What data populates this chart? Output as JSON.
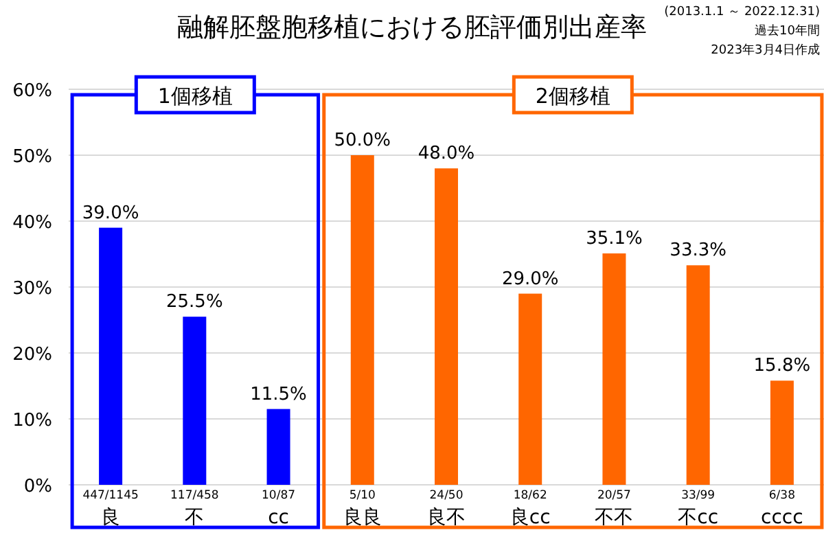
{
  "chart_data": {
    "type": "bar",
    "title": "融解胚盤胞移植における胚評価別出産率",
    "annotations": [
      "(2013.1.1 ～ 2022.12.31)",
      "過去10年間",
      "2023年3月4日作成",
      {
        "text": "447/1145",
        "x": "良",
        "y": 0
      },
      {
        "text": "117/458",
        "x": "不",
        "y": 0
      },
      {
        "text": "10/87",
        "x": "cc",
        "y": 0
      },
      {
        "text": "5/10",
        "x": "良良",
        "y": 0
      },
      {
        "text": "24/50",
        "x": "良不",
        "y": 0
      },
      {
        "text": "18/62",
        "x": "良cc",
        "y": 0
      },
      {
        "text": "20/57",
        "x": "不不",
        "y": 0
      },
      {
        "text": "33/99",
        "x": "不cc",
        "y": 0
      },
      {
        "text": "6/38",
        "x": "cccc",
        "y": 0
      }
    ],
    "categories": [
      "良",
      "不",
      "cc",
      "良良",
      "良不",
      "良cc",
      "不不",
      "不cc",
      "cccc"
    ],
    "series": [
      {
        "name": "1個移植",
        "color": "#0000ff",
        "values": [
          39.0,
          25.5,
          11.5,
          null,
          null,
          null,
          null,
          null,
          null
        ],
        "value_labels": [
          "39.0%",
          "25.5%",
          "11.5%",
          null,
          null,
          null,
          null,
          null,
          null
        ]
      },
      {
        "name": "2個移植",
        "color": "#ff6600",
        "values": [
          null,
          null,
          null,
          50.0,
          48.0,
          29.0,
          35.1,
          33.3,
          15.8
        ],
        "value_labels": [
          null,
          null,
          null,
          "50.0%",
          "48.0%",
          "29.0%",
          "35.1%",
          "33.3%",
          "15.8%"
        ]
      }
    ],
    "ylim": [
      0,
      60
    ],
    "yticks": [
      {
        "value": 0,
        "label": "0%"
      },
      {
        "value": 10,
        "label": "10%"
      },
      {
        "value": 20,
        "label": "20%"
      },
      {
        "value": 30,
        "label": "30%"
      },
      {
        "value": 40,
        "label": "40%"
      },
      {
        "value": 50,
        "label": "50%"
      },
      {
        "value": 60,
        "label": "60%"
      }
    ],
    "grid": "y"
  }
}
